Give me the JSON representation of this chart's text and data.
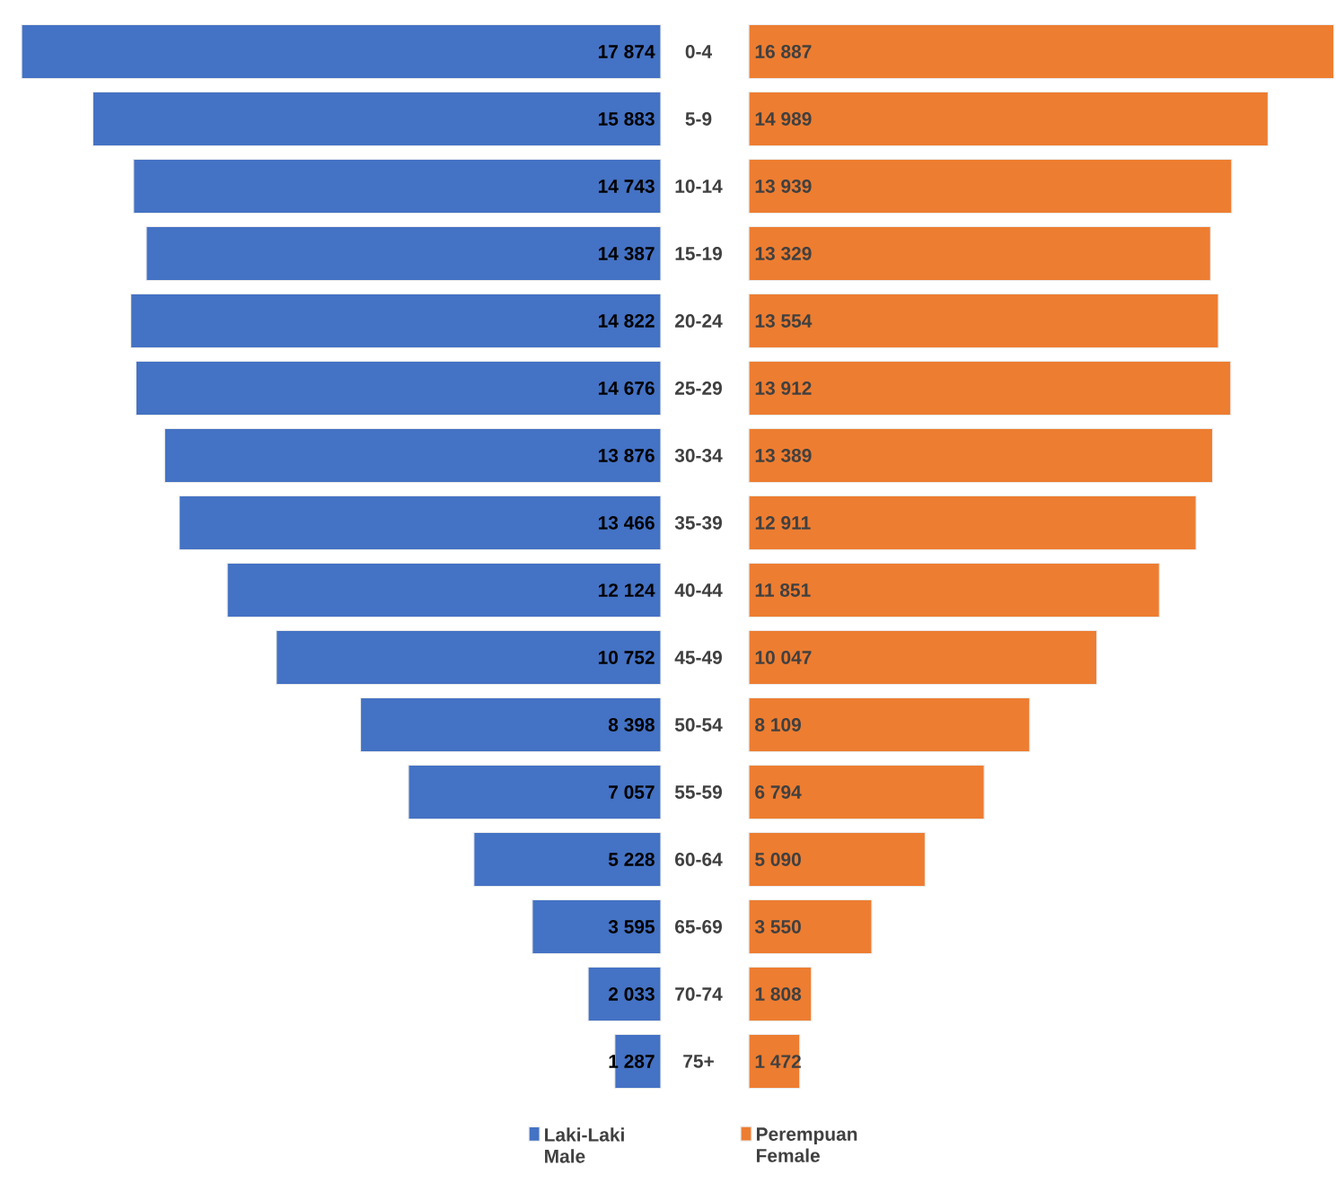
{
  "chart_data": [
    {
      "type": "bar",
      "orientation": "horizontal",
      "categories": [
        "0-4",
        "5-9",
        "10-14",
        "15-19",
        "20-24",
        "25-29",
        "30-34",
        "35-39",
        "40-44",
        "45-49",
        "50-54",
        "55-59",
        "60-64",
        "65-69",
        "70-74",
        "75+"
      ],
      "xlim": [
        18000,
        0
      ],
      "tick_labels": "y",
      "legend": "bottom",
      "series": [
        {
          "name": "Laki-Laki Male",
          "color": "#4472c4",
          "values": [
            17874,
            15883,
            14743,
            14387,
            14822,
            14676,
            13876,
            13466,
            12124,
            10752,
            8398,
            7057,
            5228,
            3595,
            2033,
            1287
          ],
          "value_labels": [
            "17 874",
            "15 883",
            "14 743",
            "14 387",
            "14 822",
            "14 676",
            "13 876",
            "13 466",
            "12 124",
            "10 752",
            "8 398",
            "7 057",
            "5 228",
            "3 595",
            "2 033",
            "1 287"
          ]
        }
      ]
    },
    {
      "type": "bar",
      "orientation": "horizontal",
      "categories": [
        null,
        null,
        null,
        null,
        null,
        null,
        null,
        null,
        null,
        null,
        null,
        null,
        null,
        null,
        null,
        null
      ],
      "xlim": [
        0,
        17000
      ],
      "tick_labels": false,
      "legend": "bottom",
      "series": [
        {
          "name": "Perempuan Female",
          "color": "#ed7d31",
          "values": [
            16887,
            14989,
            13939,
            13329,
            13554,
            13912,
            13389,
            12911,
            11851,
            10047,
            8109,
            6794,
            5090,
            3550,
            1808,
            1472
          ],
          "value_labels": [
            "16 887",
            "14 989",
            "13 939",
            "13 329",
            "13 554",
            "13 912",
            "13 389",
            "12 911",
            "11 851",
            "10 047",
            "8 109",
            "6 794",
            "5 090",
            "3 550",
            "1 808",
            "1 472"
          ]
        }
      ]
    }
  ]
}
